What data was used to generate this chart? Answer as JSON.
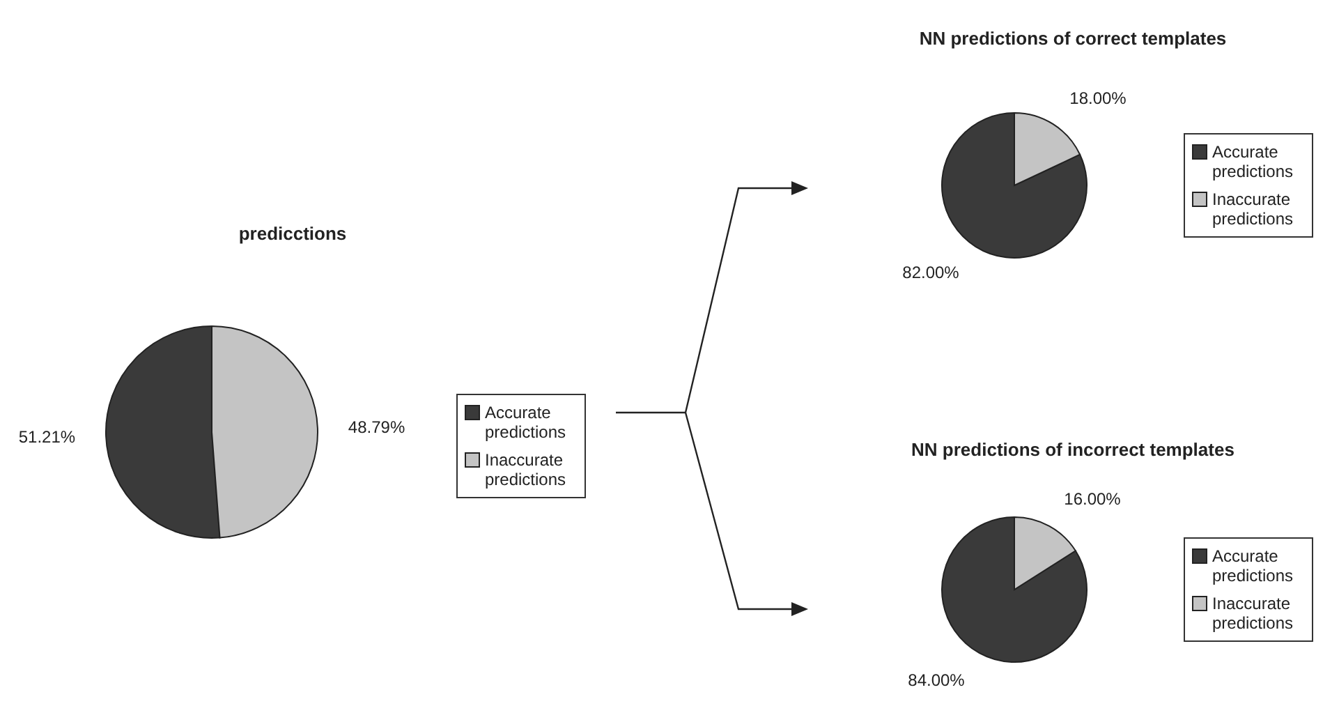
{
  "chart_data": [
    {
      "type": "pie",
      "title": "predicctions",
      "categories": [
        "Accurate predictions",
        "Inaccurate predictions"
      ],
      "values": [
        51.21,
        48.79
      ],
      "value_labels": [
        "51.21%",
        "48.79%"
      ],
      "colors": [
        "#3a3a3a",
        "#c4c4c4"
      ],
      "legend": "right"
    },
    {
      "type": "pie",
      "title": "NN predictions of correct templates",
      "categories": [
        "Accurate predictions",
        "Inaccurate predictions"
      ],
      "values": [
        82,
        18
      ],
      "value_labels": [
        "82.00%",
        "18.00%"
      ],
      "colors": [
        "#3a3a3a",
        "#c4c4c4"
      ],
      "legend": "right"
    },
    {
      "type": "pie",
      "title": "NN predictions of incorrect templates",
      "categories": [
        "Accurate predictions",
        "Inaccurate predictions"
      ],
      "values": [
        84,
        16
      ],
      "value_labels": [
        "84.00%",
        "16.00%"
      ],
      "colors": [
        "#3a3a3a",
        "#c4c4c4"
      ],
      "legend": "right"
    }
  ]
}
